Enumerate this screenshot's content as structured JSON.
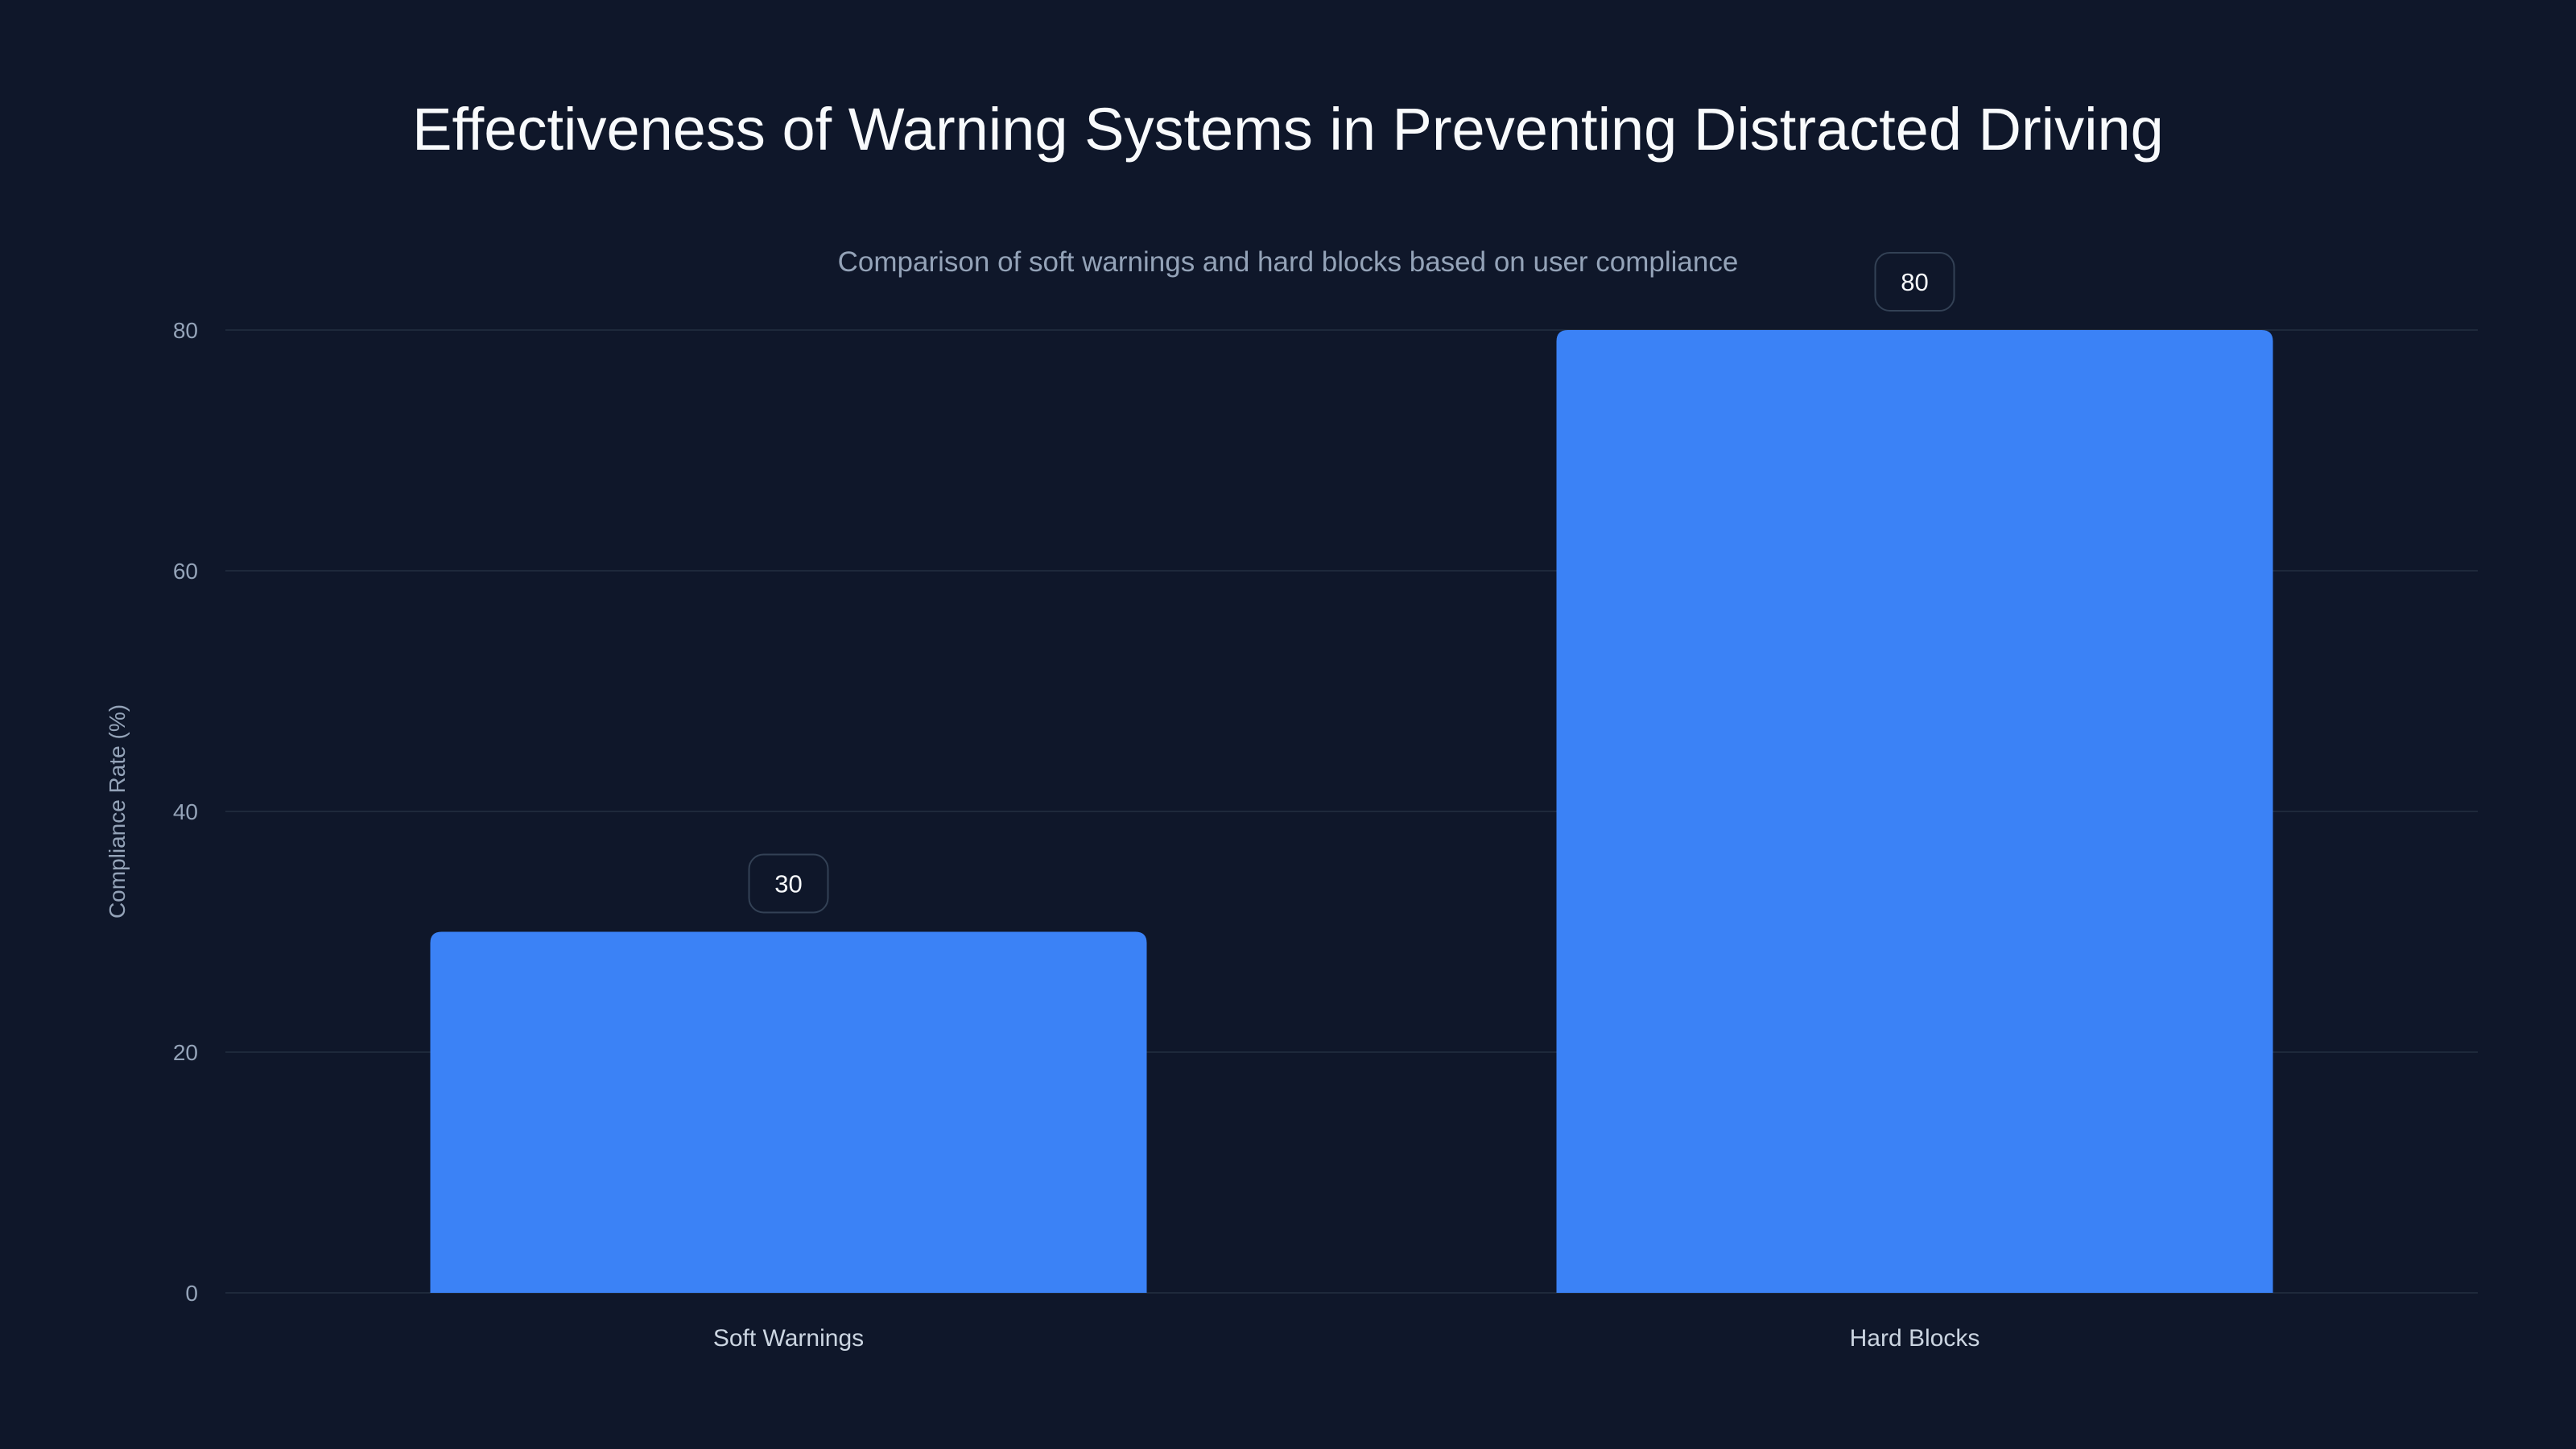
{
  "chart_data": {
    "type": "bar",
    "title": "Effectiveness of Warning Systems in Preventing Distracted Driving",
    "subtitle": "Comparison of soft warnings and hard blocks based on user compliance",
    "categories": [
      "Soft Warnings",
      "Hard Blocks"
    ],
    "values": [
      30,
      80
    ],
    "xlabel": "",
    "ylabel": "Compliance Rate (%)",
    "ylim": [
      0,
      80
    ],
    "yticks": [
      0,
      20,
      40,
      60,
      80
    ],
    "grid": true,
    "bar_color": "#3b82f6",
    "background": "#0f172a"
  }
}
